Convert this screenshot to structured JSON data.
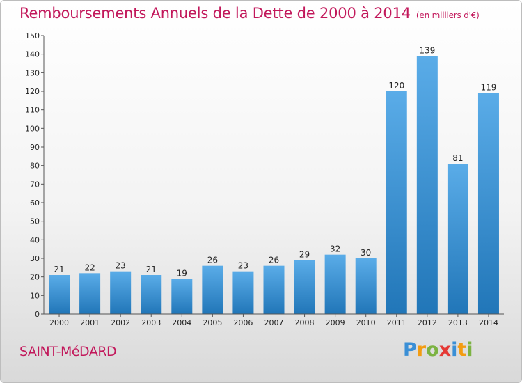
{
  "chart_data": {
    "type": "bar",
    "title": "Remboursements Annuels de la Dette de 2000 à 2014",
    "subtitle": "(en milliers d'€)",
    "xlabel": "",
    "ylabel": "",
    "ylim": [
      0,
      150
    ],
    "yticks": [
      0,
      10,
      20,
      30,
      40,
      50,
      60,
      70,
      80,
      90,
      100,
      110,
      120,
      130,
      140,
      150
    ],
    "grid": false,
    "categories": [
      "2000",
      "2001",
      "2002",
      "2003",
      "2004",
      "2005",
      "2006",
      "2007",
      "2008",
      "2009",
      "2010",
      "2011",
      "2012",
      "2013",
      "2014"
    ],
    "values": [
      21,
      22,
      23,
      21,
      19,
      26,
      23,
      26,
      29,
      32,
      30,
      120,
      139,
      81,
      119
    ],
    "colors": {
      "bar_light": "#5aace8",
      "bar_dark": "#2176b8",
      "title": "#c2185b"
    }
  },
  "footer": {
    "place": "SAINT-MéDARD",
    "logo": "Proxiti",
    "logo_letters": [
      "P",
      "r",
      "o",
      "x",
      "i",
      "t",
      "i"
    ],
    "logo_colors": [
      "#3a8fd6",
      "#f39c12",
      "#7cb342",
      "#e53935",
      "#3a8fd6",
      "#f39c12",
      "#7cb342"
    ]
  }
}
